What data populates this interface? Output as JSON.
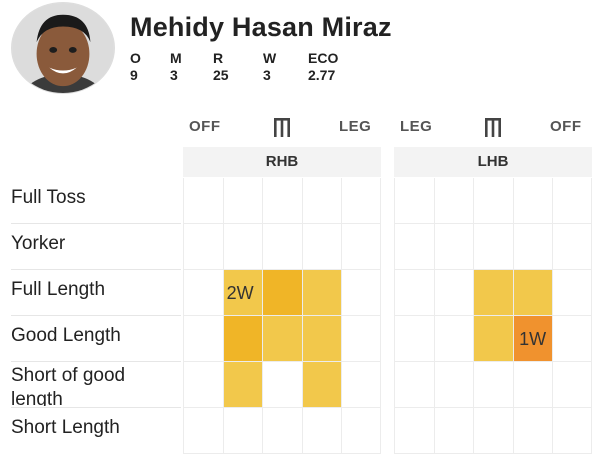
{
  "player": {
    "name": "Mehidy Hasan Miraz",
    "avatar_icon": "player-photo"
  },
  "stats": [
    {
      "label": "O",
      "value": "9"
    },
    {
      "label": "M",
      "value": "3"
    },
    {
      "label": "R",
      "value": "25"
    },
    {
      "label": "W",
      "value": "3"
    },
    {
      "label": "ECO",
      "value": "2.77"
    }
  ],
  "panels": [
    {
      "title": "RHB",
      "left_side": "OFF",
      "right_side": "LEG",
      "icon": "stumps-icon"
    },
    {
      "title": "LHB",
      "left_side": "LEG",
      "right_side": "OFF",
      "icon": "stumps-icon"
    }
  ],
  "lengths": [
    "Full Toss",
    "Yorker",
    "Full Length",
    "Good Length",
    "Short of good length",
    "Short Length"
  ],
  "colors": {
    "light": "#f2c84b",
    "medium": "#f0b527",
    "dark": "#f0922e",
    "empty": "#ffffff",
    "grid": "#ececec",
    "panel_header": "#f3f3f3"
  },
  "heatmap": {
    "RHB": [
      {
        "row": 2,
        "col": 1,
        "shade": "light",
        "label": "2W"
      },
      {
        "row": 2,
        "col": 2,
        "shade": "medium",
        "label": ""
      },
      {
        "row": 2,
        "col": 3,
        "shade": "light",
        "label": ""
      },
      {
        "row": 3,
        "col": 1,
        "shade": "medium",
        "label": ""
      },
      {
        "row": 3,
        "col": 2,
        "shade": "light",
        "label": ""
      },
      {
        "row": 3,
        "col": 3,
        "shade": "light",
        "label": ""
      },
      {
        "row": 4,
        "col": 1,
        "shade": "light",
        "label": ""
      },
      {
        "row": 4,
        "col": 3,
        "shade": "light",
        "label": ""
      }
    ],
    "LHB": [
      {
        "row": 2,
        "col": 2,
        "shade": "light",
        "label": ""
      },
      {
        "row": 2,
        "col": 3,
        "shade": "light",
        "label": ""
      },
      {
        "row": 3,
        "col": 2,
        "shade": "light",
        "label": ""
      },
      {
        "row": 3,
        "col": 3,
        "shade": "dark",
        "label": "1W"
      }
    ]
  }
}
